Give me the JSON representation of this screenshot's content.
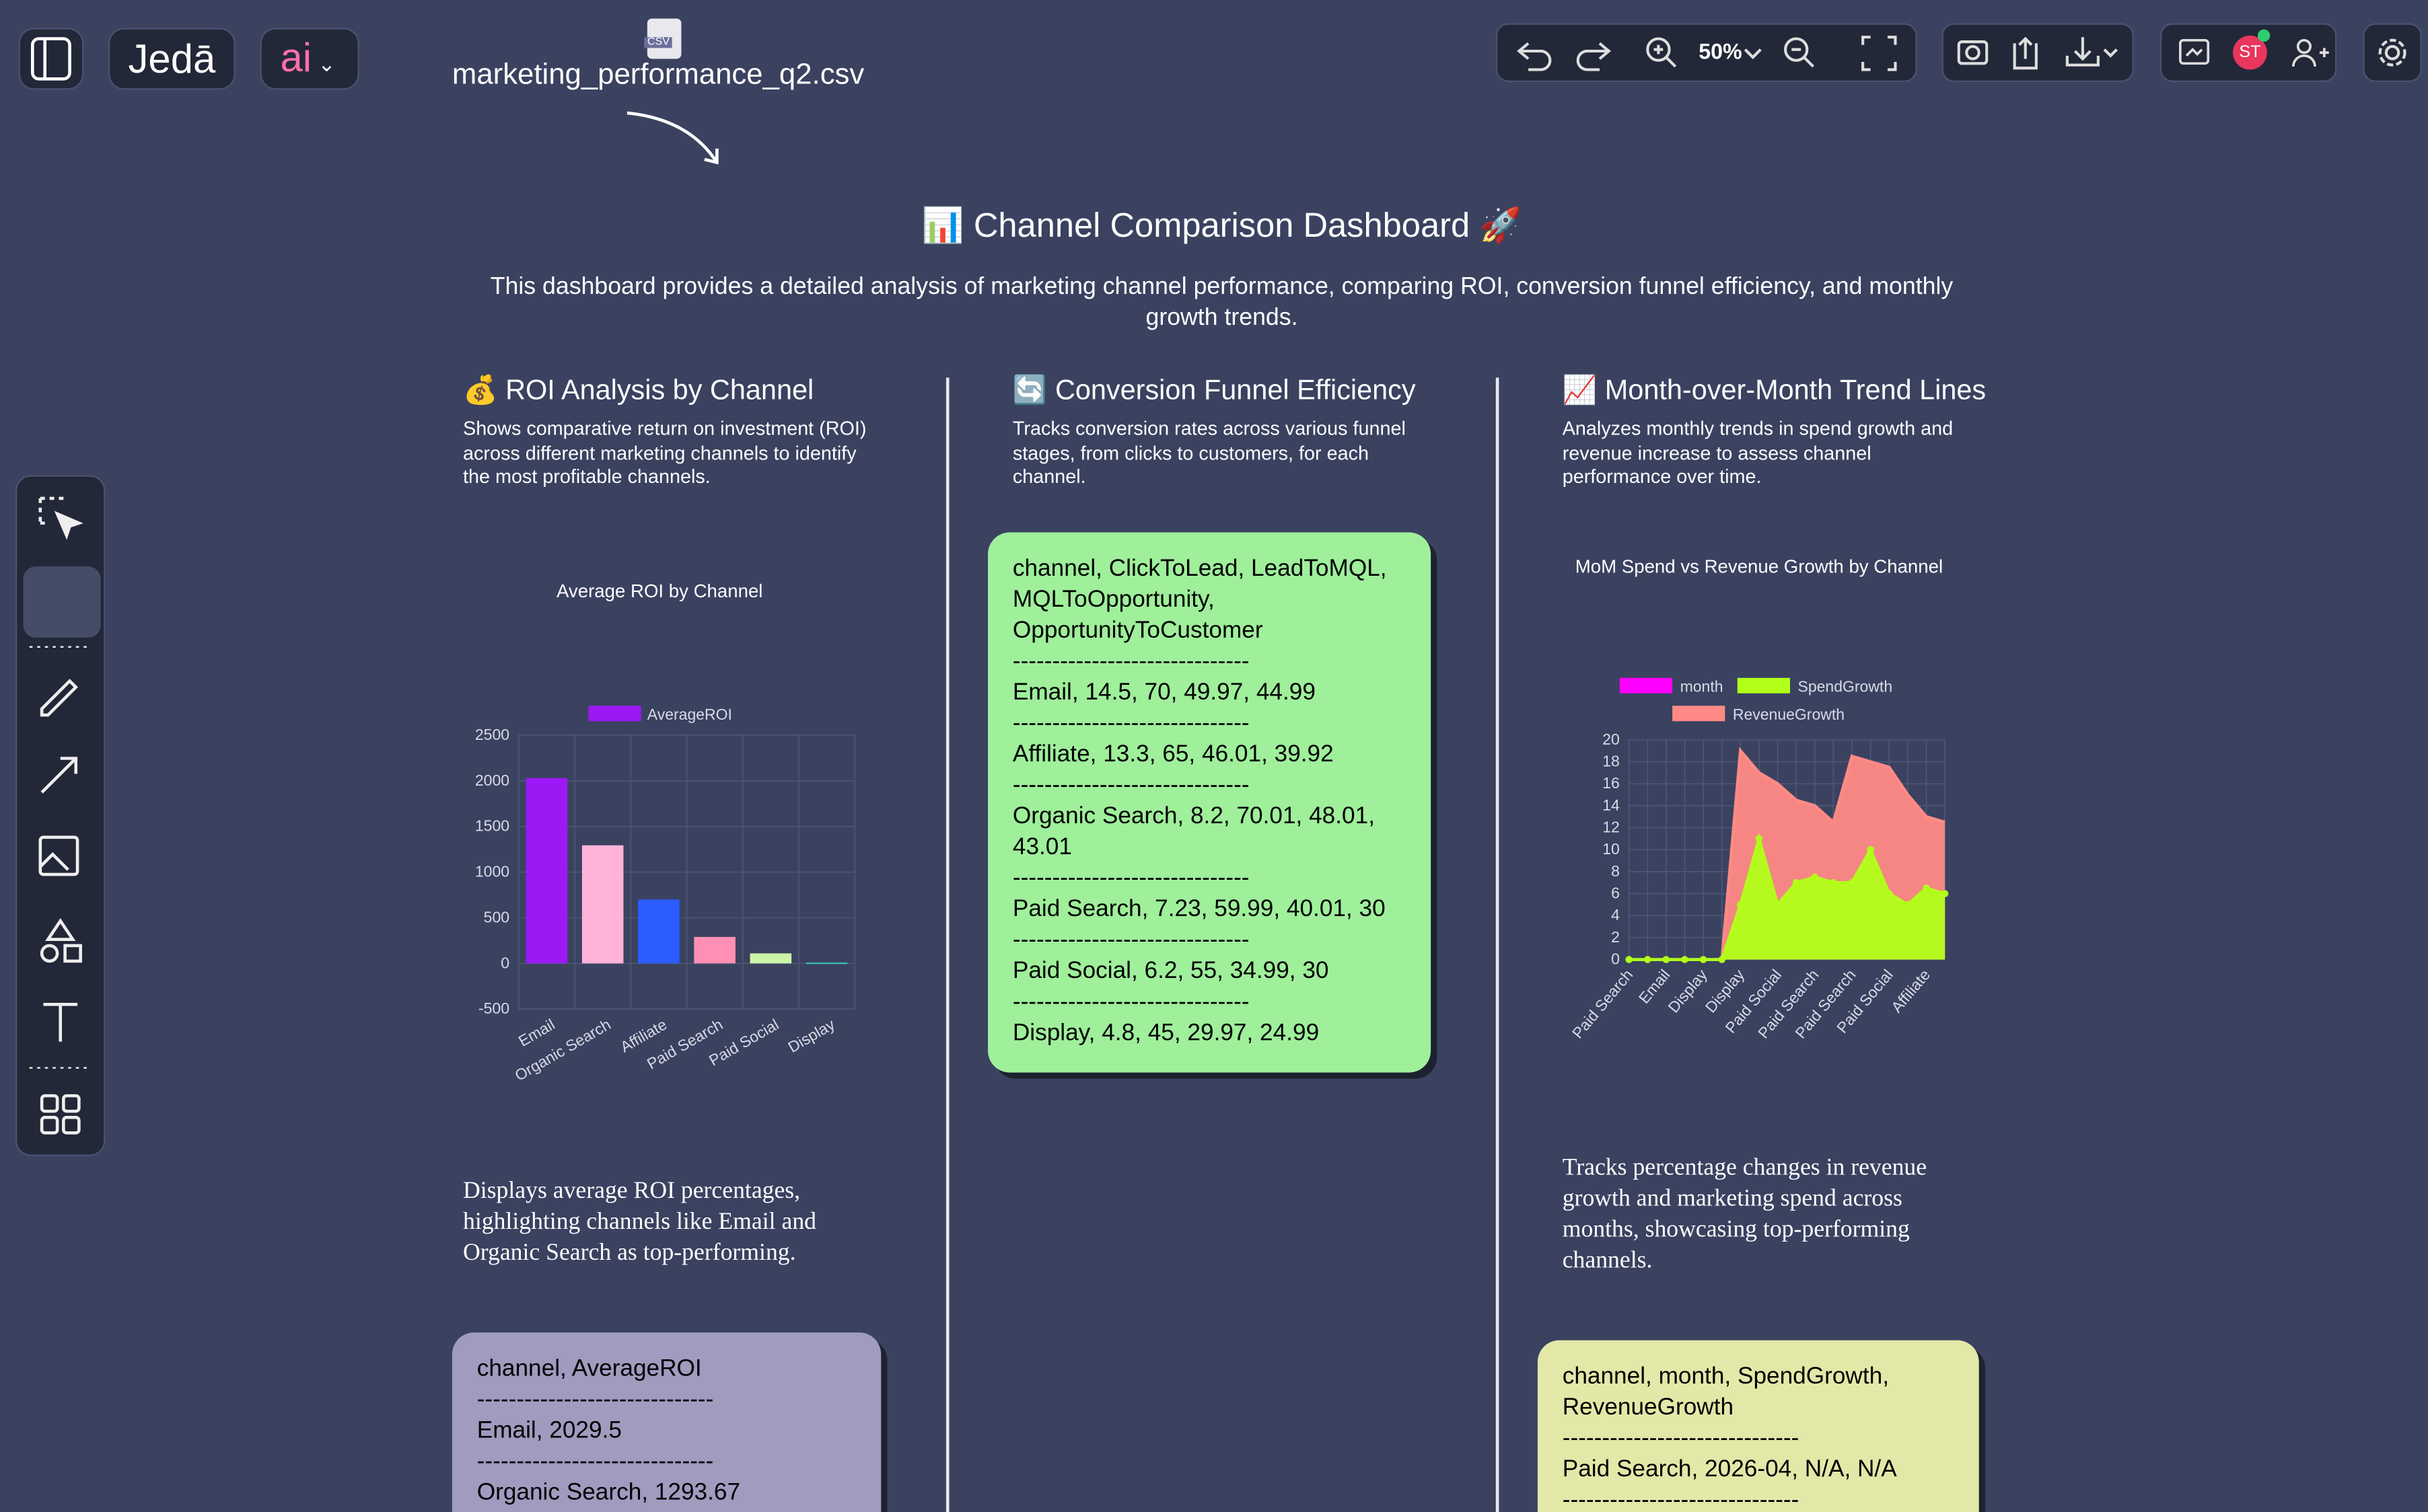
{
  "toolbar": {
    "logo": "Jedā",
    "ai": "ai",
    "zoom": "50%",
    "avatar": "ST"
  },
  "file": {
    "badge": "CSV",
    "name": "marketing_performance_q2.csv"
  },
  "dashboard": {
    "title": "📊 Channel Comparison Dashboard 🚀",
    "description": "This dashboard provides a detailed analysis of marketing channel performance, comparing ROI, conversion funnel efficiency, and monthly growth trends."
  },
  "sections": [
    {
      "title": "💰 ROI Analysis by Channel",
      "description": "Shows comparative return on investment (ROI) across different marketing channels to identify the most profitable channels.",
      "note": "Displays average ROI percentages, highlighting channels like Email and Organic Search as top-performing.",
      "card": [
        "channel, AverageROI",
        "------------------------------",
        "Email, 2029.5",
        "------------------------------",
        "Organic Search, 1293.67"
      ]
    },
    {
      "title": "🔄 Conversion Funnel Efficiency",
      "description": "Tracks conversion rates across various funnel stages, from clicks to customers, for each channel.",
      "card": [
        "channel, ClickToLead, LeadToMQL, MQLToOpportunity, OpportunityToCustomer",
        "------------------------------",
        "Email, 14.5, 70, 49.97, 44.99",
        "------------------------------",
        "Affiliate, 13.3, 65, 46.01, 39.92",
        "------------------------------",
        "Organic Search, 8.2, 70.01, 48.01, 43.01",
        "------------------------------",
        "Paid Search, 7.23, 59.99, 40.01, 30",
        "------------------------------",
        "Paid Social, 6.2, 55, 34.99, 30",
        "------------------------------",
        "Display, 4.8, 45, 29.97, 24.99"
      ]
    },
    {
      "title": "📈 Month-over-Month Trend Lines",
      "description": "Analyzes monthly trends in spend growth and revenue increase to assess channel performance over time.",
      "note": "Tracks percentage changes in revenue growth and marketing spend across months, showcasing top-performing channels.",
      "card": [
        "channel, month, SpendGrowth, RevenueGrowth",
        "------------------------------",
        "Paid Search, 2026-04, N/A, N/A",
        "------------------------------"
      ]
    }
  ],
  "charts": [
    {
      "type": "bar",
      "title": "Average ROI by Channel",
      "categories": [
        "Email",
        "Organic Search",
        "Affiliate",
        "Paid Search",
        "Paid Social",
        "Display"
      ],
      "series": [
        {
          "name": "AverageROI",
          "color": "#9b19f5",
          "colors": [
            "#9b19f5",
            "#ffb3da",
            "#2b5cff",
            "#ff8fb4",
            "#ccf5a8",
            "#3fb8b8"
          ],
          "values": [
            2029.5,
            1293.67,
            700,
            290,
            110,
            10
          ]
        }
      ],
      "ylim": [
        -500,
        2500
      ],
      "yticks": [
        -500,
        0,
        500,
        1000,
        1500,
        2000,
        2500
      ],
      "grid": true
    },
    {
      "type": "line",
      "title": "MoM Spend vs Revenue Growth by Channel",
      "categories": [
        "Paid Search",
        null,
        "Email",
        null,
        "Display",
        null,
        "Display",
        null,
        "Paid Social",
        null,
        "Paid Search",
        null,
        "Paid Search",
        null,
        "Paid Social",
        null,
        "Affiliate",
        null
      ],
      "series": [
        {
          "name": "month",
          "color": "#ff00ff",
          "values": [
            null,
            null,
            null,
            null,
            null,
            null,
            null,
            null,
            null,
            null,
            null,
            null,
            null,
            null,
            null,
            null,
            null,
            null
          ]
        },
        {
          "name": "SpendGrowth",
          "color": "#b2ff1a",
          "values": [
            0,
            0,
            0,
            0,
            0,
            0,
            5,
            11,
            5,
            7,
            7.5,
            7,
            7,
            10,
            6,
            5,
            6.5,
            6
          ]
        },
        {
          "name": "RevenueGrowth",
          "color": "#ff8a85",
          "values": [
            0,
            0,
            0,
            0,
            0,
            0,
            19,
            17,
            16,
            14.5,
            14,
            12.5,
            18.5,
            18,
            17.5,
            15,
            13,
            12.5
          ]
        }
      ],
      "ylim": [
        0,
        20
      ],
      "yticks": [
        0,
        2,
        4,
        6,
        8,
        10,
        12,
        14,
        16,
        18,
        20
      ],
      "grid": true
    }
  ]
}
